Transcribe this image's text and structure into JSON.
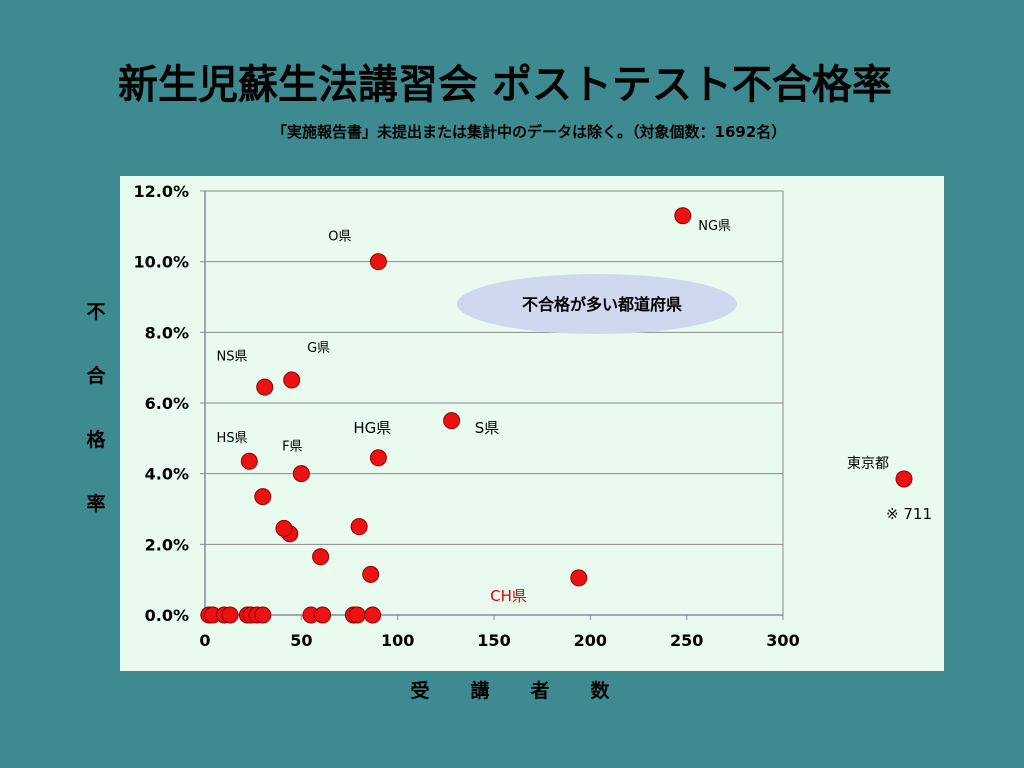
{
  "slide": {
    "title": "新生児蘇生法講習会 ポストテスト不合格率",
    "subtitle": "「実施報告書」未提出または集計中のデータは除く。（対象個数：1692名）"
  },
  "chart_data": {
    "type": "scatter",
    "title": "新生児蘇生法講習会 ポストテスト不合格率",
    "xlabel": "受 講 者 数",
    "ylabel": "不 合 格 率",
    "xlim": [
      0,
      300
    ],
    "ylim": [
      0,
      12
    ],
    "x_ticks": [
      "0",
      "50",
      "100",
      "150",
      "200",
      "250",
      "300"
    ],
    "y_ticks": [
      "0.0%",
      "2.0%",
      "4.0%",
      "6.0%",
      "8.0%",
      "10.0%",
      "12.0%"
    ],
    "grid": true,
    "point_color": "#ee1111",
    "points": [
      {
        "x": 2,
        "y": 0
      },
      {
        "x": 4,
        "y": 0
      },
      {
        "x": 10,
        "y": 0
      },
      {
        "x": 13,
        "y": 0
      },
      {
        "x": 22,
        "y": 0
      },
      {
        "x": 24,
        "y": 0
      },
      {
        "x": 27,
        "y": 0
      },
      {
        "x": 30,
        "y": 0
      },
      {
        "x": 55,
        "y": 0
      },
      {
        "x": 61,
        "y": 0
      },
      {
        "x": 77,
        "y": 0
      },
      {
        "x": 79,
        "y": 0
      },
      {
        "x": 87,
        "y": 0
      },
      {
        "x": 86,
        "y": 1.15
      },
      {
        "x": 60,
        "y": 1.65
      },
      {
        "x": 44,
        "y": 2.3
      },
      {
        "x": 41,
        "y": 2.45
      },
      {
        "x": 80,
        "y": 2.5
      },
      {
        "x": 30,
        "y": 3.35
      },
      {
        "x": 23,
        "y": 4.35
      },
      {
        "x": 50,
        "y": 4.0
      },
      {
        "x": 90,
        "y": 4.45
      },
      {
        "x": 128,
        "y": 5.5
      },
      {
        "x": 31,
        "y": 6.45
      },
      {
        "x": 45,
        "y": 6.65
      },
      {
        "x": 90,
        "y": 10.0
      },
      {
        "x": 248,
        "y": 11.3
      },
      {
        "x": 194,
        "y": 1.05
      }
    ],
    "outlier": {
      "y": 3.85,
      "label": "東京都",
      "note": "※ 711"
    },
    "point_labels": [
      {
        "text": "O県",
        "x": 64,
        "y": 10.6,
        "color": "#000000"
      },
      {
        "text": "NG県",
        "x": 256,
        "y": 10.9,
        "color": "#000000"
      },
      {
        "text": "NS県",
        "x": 6,
        "y": 7.2,
        "color": "#000000"
      },
      {
        "text": "G県",
        "x": 53,
        "y": 7.45,
        "color": "#000000"
      },
      {
        "text": "HS県",
        "x": 6,
        "y": 4.9,
        "color": "#000000"
      },
      {
        "text": "F県",
        "x": 40,
        "y": 4.65,
        "color": "#000000"
      },
      {
        "text": "HG県",
        "x": 77,
        "y": 5.15,
        "color": "#000000"
      },
      {
        "text": "S県",
        "x": 140,
        "y": 5.15,
        "color": "#000000"
      },
      {
        "text": "CH県",
        "x": 148,
        "y": 0.4,
        "color": "#e00000"
      }
    ],
    "annotation": "不合格が多い都道府県"
  }
}
